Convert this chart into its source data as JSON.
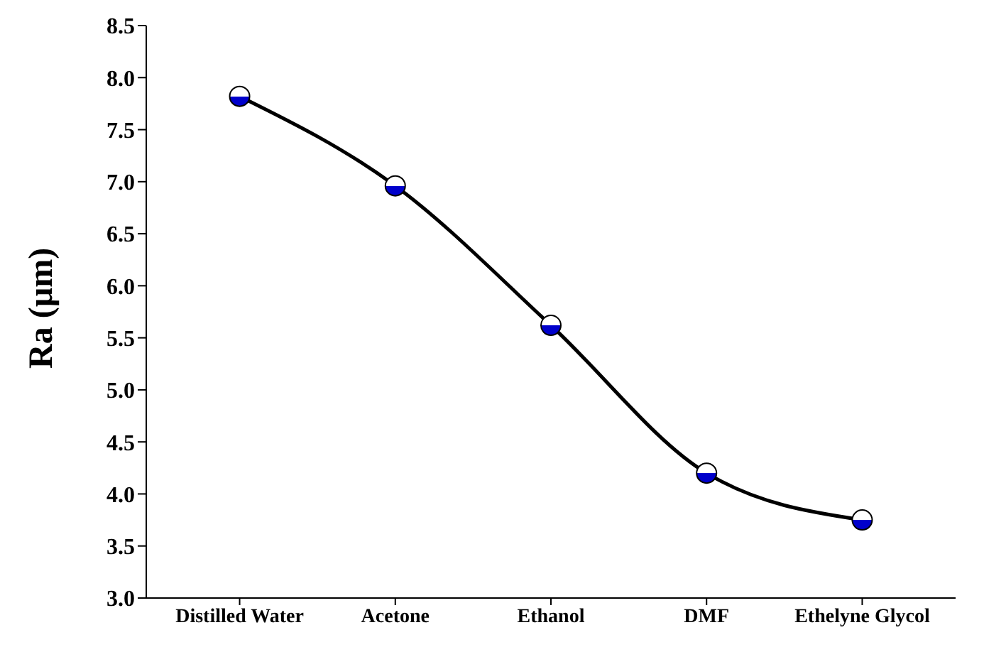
{
  "chart_data": {
    "type": "line",
    "ylabel": "Ra (µm)",
    "categories": [
      "Distilled Water",
      "Acetone",
      "Ethanol",
      "DMF",
      "Ethelyne Glycol"
    ],
    "series": [
      {
        "color": "#000000",
        "colors": [
          "#0000cc",
          "#0000cc",
          "#0000cc",
          "#0000cc",
          "#0000cc"
        ],
        "values": [
          7.82,
          6.96,
          5.62,
          4.2,
          3.75
        ]
      }
    ],
    "ylim": [
      3.0,
      8.5
    ],
    "yticks": [
      {
        "value": 3.0,
        "label": "3.0"
      },
      {
        "value": 3.5,
        "label": "3.5"
      },
      {
        "value": 4.0,
        "label": "4.0"
      },
      {
        "value": 4.5,
        "label": "4.5"
      },
      {
        "value": 5.0,
        "label": "5.0"
      },
      {
        "value": 5.5,
        "label": "5.5"
      },
      {
        "value": 6.0,
        "label": "6.0"
      },
      {
        "value": 6.5,
        "label": "6.5"
      },
      {
        "value": 7.0,
        "label": "7.0"
      },
      {
        "value": 7.5,
        "label": "7.5"
      },
      {
        "value": 8.0,
        "label": "8.0"
      },
      {
        "value": 8.5,
        "label": "8.5"
      }
    ],
    "grid": false,
    "legend": false,
    "marker": "circle",
    "line_style": "solid"
  }
}
